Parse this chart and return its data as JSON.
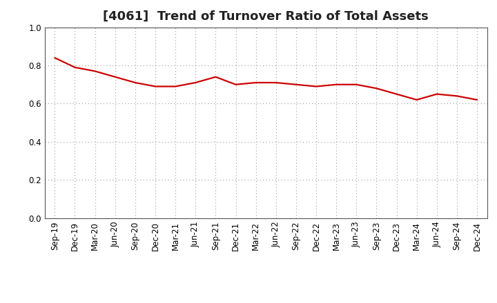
{
  "title": "[4061]  Trend of Turnover Ratio of Total Assets",
  "x_labels": [
    "Sep-19",
    "Dec-19",
    "Mar-20",
    "Jun-20",
    "Sep-20",
    "Dec-20",
    "Mar-21",
    "Jun-21",
    "Sep-21",
    "Dec-21",
    "Mar-22",
    "Jun-22",
    "Sep-22",
    "Dec-22",
    "Mar-23",
    "Jun-23",
    "Sep-23",
    "Dec-23",
    "Mar-24",
    "Jun-24",
    "Sep-24",
    "Dec-24"
  ],
  "y_values": [
    0.84,
    0.79,
    0.77,
    0.74,
    0.71,
    0.69,
    0.69,
    0.71,
    0.74,
    0.7,
    0.71,
    0.71,
    0.7,
    0.69,
    0.7,
    0.7,
    0.68,
    0.65,
    0.62,
    0.65,
    0.64,
    0.62
  ],
  "line_color": "#cc0000",
  "line_width": 1.6,
  "ylim": [
    0.0,
    1.0
  ],
  "yticks": [
    0.0,
    0.2,
    0.4,
    0.6,
    0.8,
    1.0
  ],
  "background_color": "#ffffff",
  "grid_color": "#999999",
  "title_fontsize": 13,
  "tick_fontsize": 8.5,
  "title_color": "#222222"
}
